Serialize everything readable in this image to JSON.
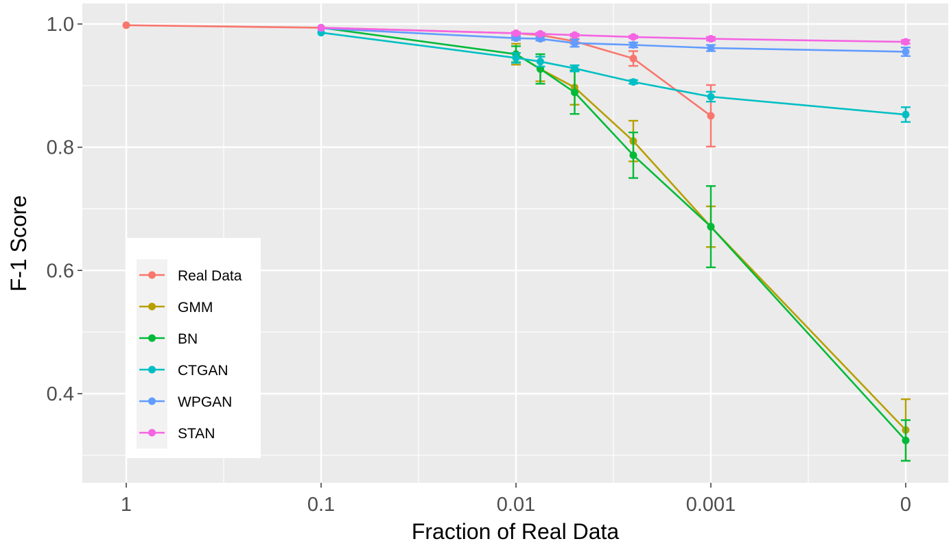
{
  "chart_data": {
    "type": "line",
    "title": "",
    "xlabel": "Fraction of Real Data",
    "ylabel": "F-1 Score",
    "x_scale": "log (reversed)",
    "x_ticks": [
      "1",
      "0.1",
      "0.01",
      "0.001",
      "0"
    ],
    "y_ticks": [
      "0.4",
      "0.6",
      "0.8",
      "1.0"
    ],
    "ylim": [
      0.255,
      1.03
    ],
    "grid": true,
    "legend_position": "left-center",
    "x": [
      1,
      0.1,
      0.01,
      0.0075,
      0.005,
      0.0025,
      0.001,
      0
    ],
    "series": [
      {
        "name": "Real Data",
        "color": "#F8766D",
        "x": [
          1,
          0.1,
          0.01,
          0.0075,
          0.005,
          0.0025,
          0.001
        ],
        "values": [
          0.998,
          0.994,
          0.985,
          0.982,
          0.972,
          0.944,
          0.851
        ],
        "err": [
          0,
          0,
          0,
          0,
          0.004,
          0.012,
          0.05
        ]
      },
      {
        "name": "GMM",
        "color": "#B79F00",
        "x": [
          0.01,
          0.0075,
          0.005,
          0.0025,
          0.001,
          0
        ],
        "values": [
          0.951,
          0.927,
          0.897,
          0.81,
          0.671,
          0.341
        ],
        "err": [
          0.017,
          0.02,
          0.028,
          0.033,
          0.033,
          0.05
        ]
      },
      {
        "name": "BN",
        "color": "#00BA38",
        "x": [
          0.1,
          0.01,
          0.0075,
          0.005,
          0.0025,
          0.001,
          0
        ],
        "values": [
          0.994,
          0.951,
          0.927,
          0.889,
          0.787,
          0.671,
          0.324
        ],
        "err": [
          0,
          0.013,
          0.024,
          0.035,
          0.037,
          0.066,
          0.033
        ]
      },
      {
        "name": "CTGAN",
        "color": "#00BFC4",
        "x": [
          0.1,
          0.01,
          0.0075,
          0.005,
          0.0025,
          0.001,
          0
        ],
        "values": [
          0.986,
          0.945,
          0.939,
          0.928,
          0.906,
          0.882,
          0.853
        ],
        "err": [
          0,
          0.008,
          0.008,
          0.005,
          0.003,
          0.008,
          0.012
        ]
      },
      {
        "name": "WPGAN",
        "color": "#619CFF",
        "x": [
          0.1,
          0.01,
          0.0075,
          0.005,
          0.0025,
          0.001,
          0
        ],
        "values": [
          0.993,
          0.977,
          0.976,
          0.969,
          0.966,
          0.961,
          0.955
        ],
        "err": [
          0,
          0.003,
          0.003,
          0.006,
          0.004,
          0.005,
          0.007
        ]
      },
      {
        "name": "STAN",
        "color": "#F564E3",
        "x": [
          0.1,
          0.01,
          0.0075,
          0.005,
          0.0025,
          0.001,
          0
        ],
        "values": [
          0.994,
          0.985,
          0.984,
          0.982,
          0.979,
          0.976,
          0.971
        ],
        "err": [
          0,
          0.002,
          0.002,
          0.002,
          0.002,
          0.003,
          0.003
        ]
      }
    ]
  }
}
